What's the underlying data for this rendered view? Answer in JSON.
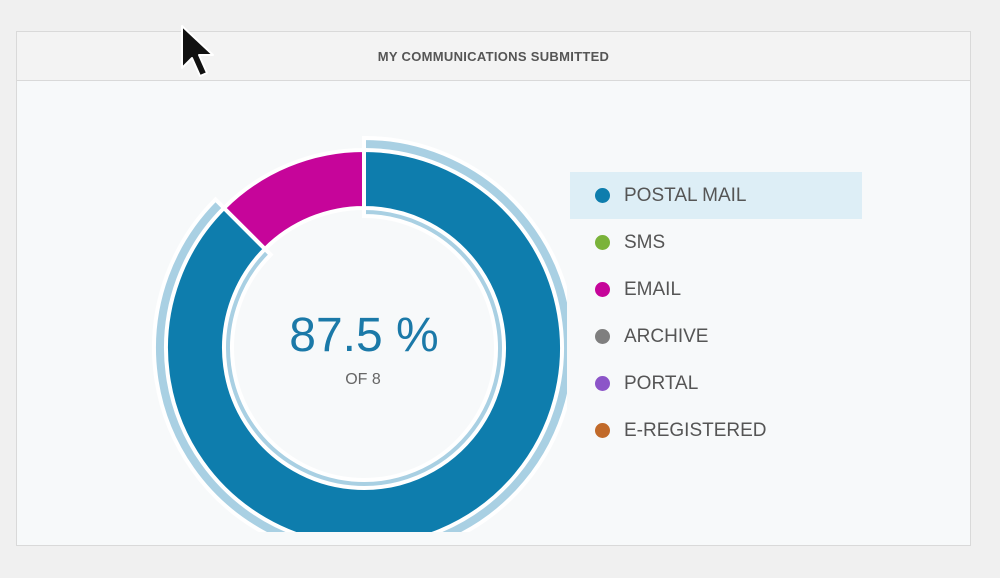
{
  "panel": {
    "title": "MY COMMUNICATIONS SUBMITTED"
  },
  "chart_data": {
    "type": "pie",
    "variant": "donut",
    "center_value": "87.5 %",
    "center_label": "OF 8",
    "total": 8,
    "highlighted_series": "POSTAL MAIL",
    "series": [
      {
        "name": "POSTAL MAIL",
        "value": 7,
        "color": "#0e7dad"
      },
      {
        "name": "SMS",
        "value": 0,
        "color": "#7ab33a"
      },
      {
        "name": "EMAIL",
        "value": 1,
        "color": "#c6059a"
      },
      {
        "name": "ARCHIVE",
        "value": 0,
        "color": "#7f7f7f"
      },
      {
        "name": "PORTAL",
        "value": 0,
        "color": "#8c55c8"
      },
      {
        "name": "E-REGISTERED",
        "value": 0,
        "color": "#c16a2a"
      }
    ],
    "legend": "right"
  },
  "colors": {
    "highlight_ring": "#a9d0e3",
    "center_value": "#1b79a8",
    "center_label": "#666666"
  }
}
